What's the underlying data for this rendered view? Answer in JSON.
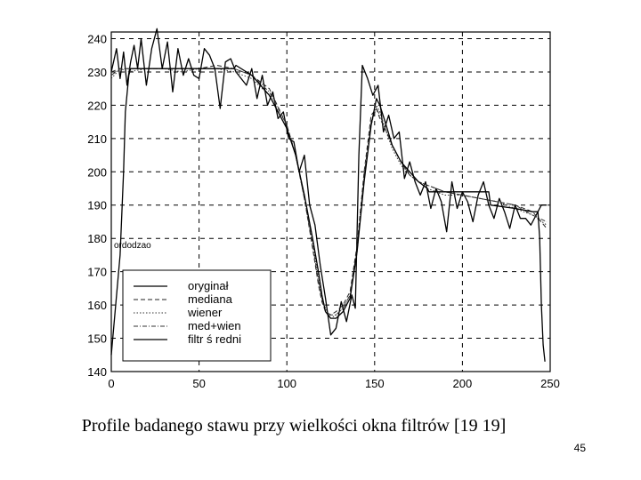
{
  "caption": "Profile badanego stawu przy wielkości okna filtrów [19 19]",
  "page_number": "45",
  "chart_data": {
    "type": "line",
    "title": "",
    "xlabel": "",
    "ylabel": "",
    "xlim": [
      0,
      250
    ],
    "ylim": [
      140,
      242
    ],
    "x_ticks": [
      "0",
      "50",
      "100",
      "150",
      "200",
      "250"
    ],
    "y_ticks": [
      "140",
      "150",
      "160",
      "170",
      "180",
      "190",
      "200",
      "210",
      "220",
      "230",
      "240"
    ],
    "grid": true,
    "legend_position": "lower-left",
    "series": [
      {
        "name": "oryginał",
        "style": "solid-noisy",
        "x": [
          0,
          3,
          5,
          7,
          9,
          11,
          13,
          15,
          17,
          20,
          23,
          26,
          29,
          32,
          35,
          38,
          41,
          44,
          47,
          50,
          53,
          56,
          59,
          62,
          65,
          68,
          71,
          74,
          77,
          80,
          83,
          86,
          89,
          92,
          95,
          98,
          101,
          104,
          107,
          110,
          113,
          116,
          119,
          122,
          125,
          128,
          131,
          134,
          137,
          139,
          141,
          143,
          146,
          149,
          152,
          155,
          158,
          161,
          164,
          167,
          170,
          173,
          176,
          179,
          182,
          185,
          188,
          191,
          194,
          197,
          200,
          203,
          206,
          209,
          212,
          215,
          218,
          221,
          224,
          227,
          230,
          233,
          236,
          239,
          242,
          245,
          248
        ],
        "y": [
          230,
          237,
          228,
          236,
          226,
          233,
          238,
          231,
          240,
          226,
          237,
          243,
          231,
          239,
          224,
          237,
          229,
          234,
          229,
          228,
          237,
          235,
          231,
          219,
          233,
          234,
          230,
          228,
          226,
          231,
          222,
          229,
          220,
          224,
          216,
          218,
          210,
          209,
          200,
          205,
          190,
          184,
          172,
          162,
          151,
          153,
          161,
          155,
          163,
          159,
          205,
          232,
          228,
          223,
          226,
          212,
          217,
          210,
          212,
          198,
          203,
          197,
          193,
          197,
          189,
          195,
          191,
          182,
          197,
          189,
          194,
          191,
          185,
          193,
          197,
          190,
          186,
          192,
          188,
          183,
          190,
          186,
          186,
          184,
          187,
          190,
          190
        ]
      },
      {
        "name": "mediana",
        "style": "dashed",
        "x": [
          0,
          5,
          10,
          20,
          30,
          40,
          50,
          60,
          70,
          80,
          90,
          100,
          105,
          110,
          115,
          118,
          120,
          122,
          125,
          128,
          132,
          136,
          140,
          144,
          148,
          151,
          153,
          156,
          160,
          165,
          170,
          175,
          180,
          185,
          190,
          200,
          210,
          220,
          230,
          240,
          248
        ],
        "y": [
          230,
          231,
          231,
          231,
          231,
          231,
          231,
          232,
          231,
          229,
          225,
          214,
          205,
          192,
          176,
          166,
          161,
          158,
          157,
          158,
          160,
          164,
          178,
          200,
          217,
          219,
          216,
          213,
          208,
          203,
          199,
          197,
          196,
          195,
          194,
          193,
          192,
          191,
          190,
          188,
          183
        ]
      },
      {
        "name": "wiener",
        "style": "dotted",
        "x": [
          0,
          5,
          10,
          20,
          30,
          40,
          50,
          60,
          70,
          80,
          90,
          100,
          105,
          110,
          115,
          118,
          120,
          122,
          125,
          128,
          132,
          136,
          140,
          144,
          148,
          151,
          153,
          156,
          160,
          165,
          170,
          175,
          180,
          185,
          190,
          200,
          210,
          220,
          230,
          240,
          248
        ],
        "y": [
          228,
          231,
          230,
          231,
          231,
          230,
          231,
          231,
          230,
          228,
          223,
          213,
          205,
          193,
          178,
          168,
          162,
          159,
          156,
          157,
          159,
          163,
          176,
          198,
          214,
          220,
          218,
          213,
          207,
          202,
          199,
          197,
          195,
          194,
          193,
          193,
          192,
          191,
          189,
          187,
          184
        ]
      },
      {
        "name": "med+wien",
        "style": "dash-dot",
        "x": [
          0,
          5,
          10,
          20,
          30,
          40,
          50,
          60,
          70,
          80,
          90,
          100,
          105,
          110,
          115,
          118,
          120,
          122,
          125,
          128,
          132,
          136,
          140,
          144,
          148,
          151,
          153,
          156,
          160,
          165,
          170,
          175,
          180,
          185,
          190,
          200,
          210,
          220,
          230,
          240,
          248
        ],
        "y": [
          229,
          231,
          231,
          231,
          231,
          231,
          231,
          231,
          231,
          229,
          224,
          214,
          205,
          192,
          177,
          167,
          162,
          158,
          157,
          157,
          159,
          163,
          177,
          199,
          215,
          219,
          217,
          213,
          208,
          203,
          199,
          197,
          196,
          195,
          194,
          193,
          192,
          191,
          190,
          187,
          185
        ]
      },
      {
        "name": "filtr ś redni",
        "style": "solid-steps",
        "x": [
          0,
          5,
          7,
          8,
          10,
          11,
          12,
          70,
          71,
          80,
          90,
          100,
          105,
          110,
          115,
          118,
          120,
          122,
          125,
          128,
          132,
          136,
          140,
          144,
          148,
          151,
          153,
          156,
          160,
          165,
          170,
          175,
          180,
          181,
          200,
          215,
          216,
          230,
          240,
          243,
          244,
          245,
          246,
          247
        ],
        "y": [
          145,
          175,
          200,
          218,
          229,
          231,
          231,
          231,
          232,
          229,
          223,
          213,
          205,
          193,
          179,
          170,
          163,
          158,
          156,
          156,
          158,
          162,
          176,
          197,
          214,
          222,
          220,
          215,
          208,
          203,
          200,
          197,
          195,
          194,
          194,
          194,
          190,
          189,
          188,
          188,
          180,
          160,
          148,
          143
        ]
      }
    ],
    "inset_fragment": "ordodzao"
  }
}
